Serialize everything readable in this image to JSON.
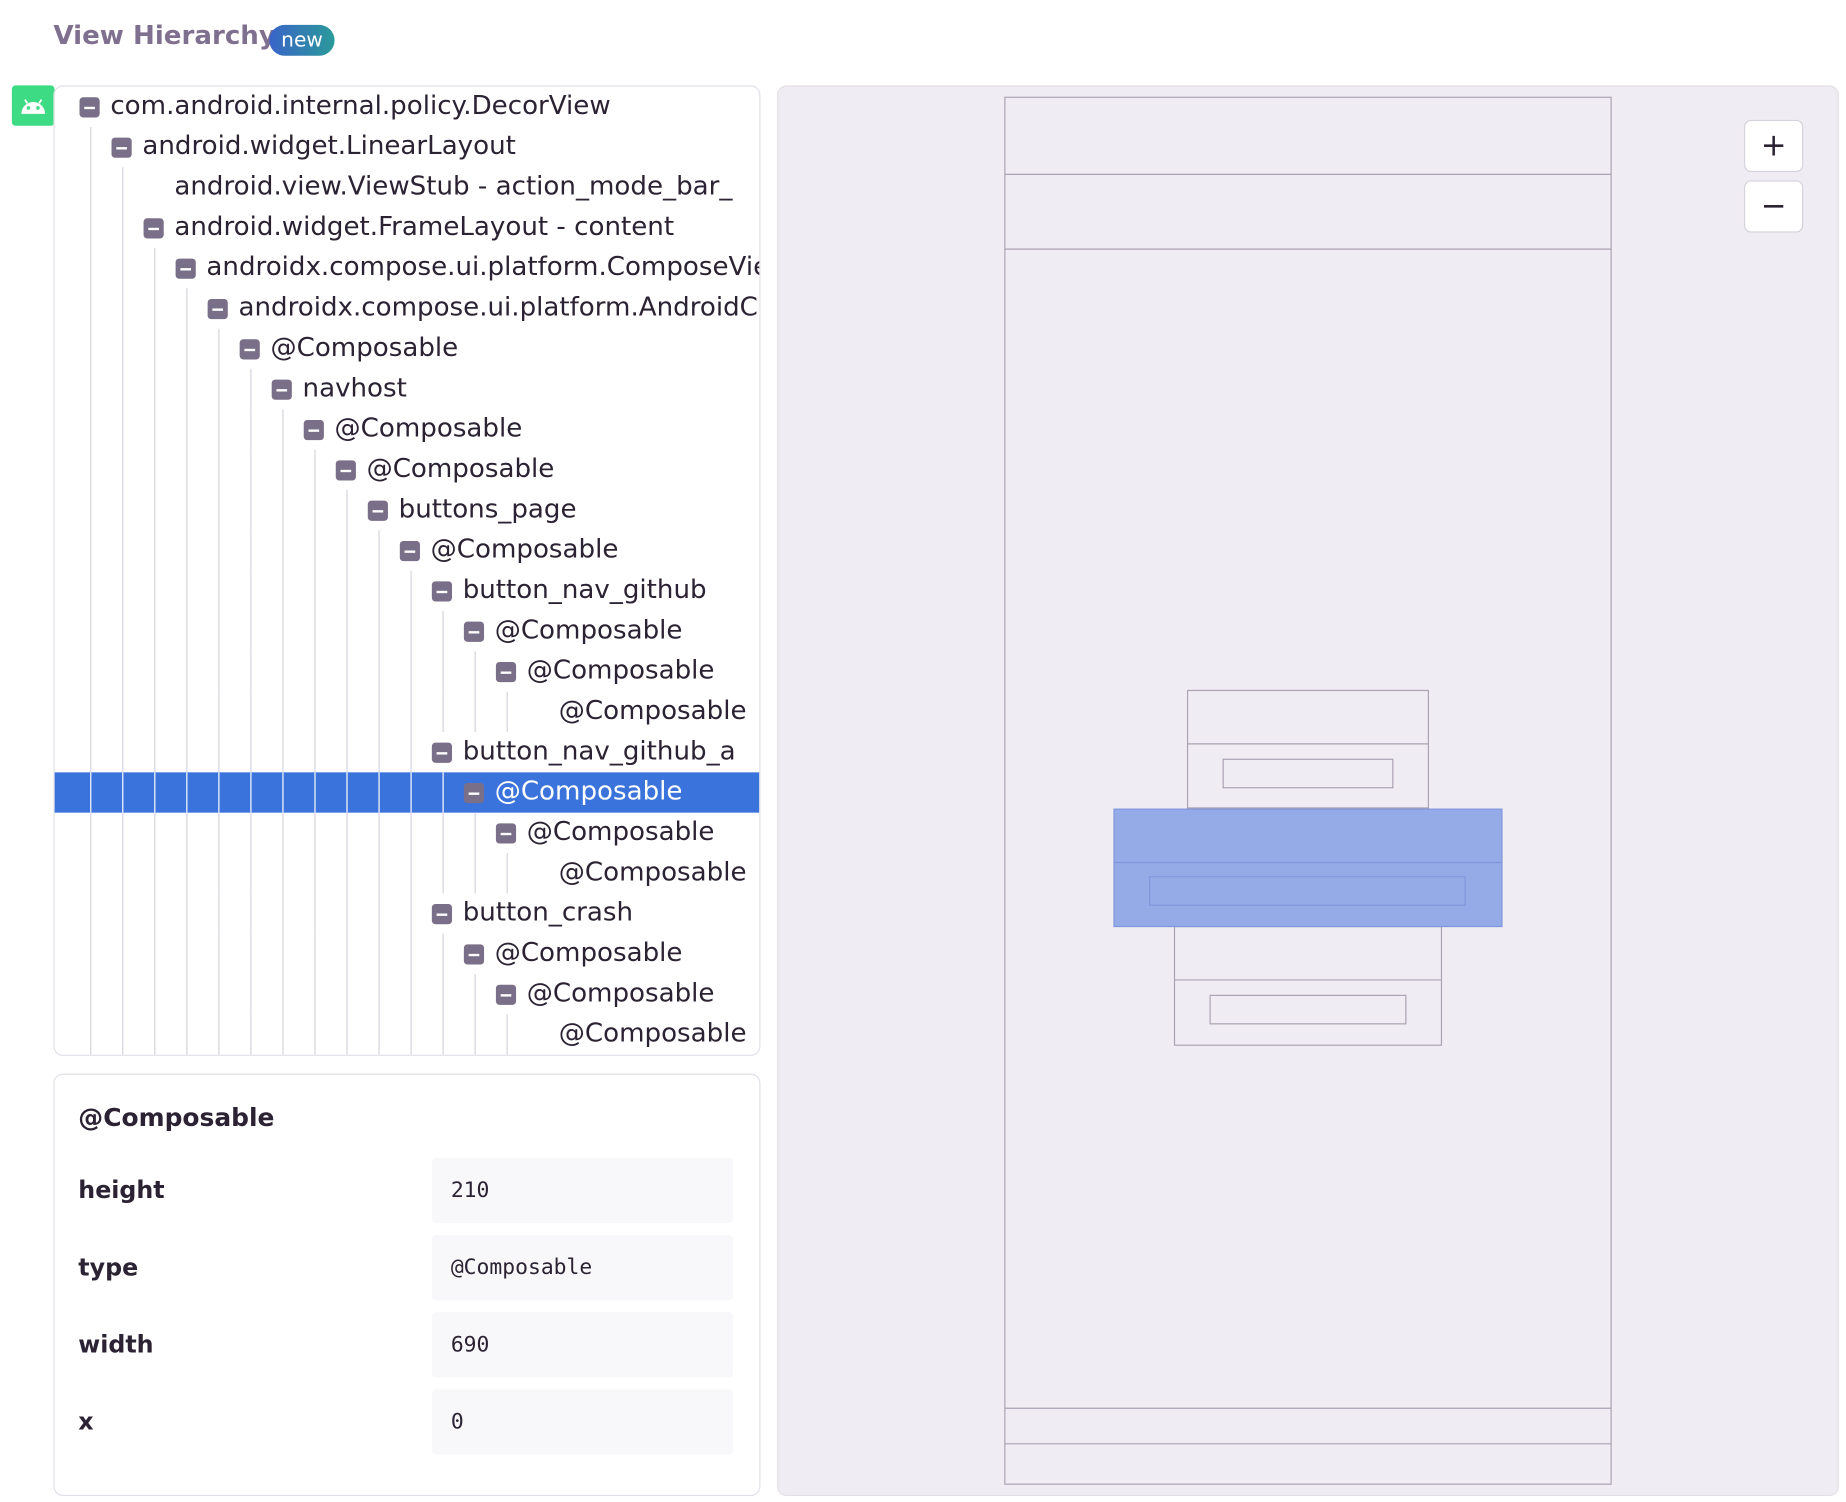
{
  "header": {
    "title": "View Hierarchy",
    "badge": "new"
  },
  "tree": {
    "nodes": [
      {
        "label": "com.android.internal.policy.DecorView",
        "depth": 0,
        "expanded": true
      },
      {
        "label": "android.widget.LinearLayout",
        "depth": 1,
        "expanded": true
      },
      {
        "label": "android.view.ViewStub - action_mode_bar_",
        "depth": 2,
        "expanded": false
      },
      {
        "label": "android.widget.FrameLayout - content",
        "depth": 2,
        "expanded": true
      },
      {
        "label": "androidx.compose.ui.platform.ComposeVie",
        "depth": 3,
        "expanded": true
      },
      {
        "label": "androidx.compose.ui.platform.AndroidC",
        "depth": 4,
        "expanded": true
      },
      {
        "label": "@Composable",
        "depth": 5,
        "expanded": true
      },
      {
        "label": "navhost",
        "depth": 6,
        "expanded": true
      },
      {
        "label": "@Composable",
        "depth": 7,
        "expanded": true
      },
      {
        "label": "@Composable",
        "depth": 8,
        "expanded": true
      },
      {
        "label": "buttons_page",
        "depth": 9,
        "expanded": true
      },
      {
        "label": "@Composable",
        "depth": 10,
        "expanded": true
      },
      {
        "label": "button_nav_github",
        "depth": 11,
        "expanded": true
      },
      {
        "label": "@Composable",
        "depth": 12,
        "expanded": true
      },
      {
        "label": "@Composable",
        "depth": 13,
        "expanded": true
      },
      {
        "label": "@Composable",
        "depth": 14,
        "expanded": false
      },
      {
        "label": "button_nav_github_a",
        "depth": 11,
        "expanded": true
      },
      {
        "label": "@Composable",
        "depth": 12,
        "expanded": true,
        "selected": true
      },
      {
        "label": "@Composable",
        "depth": 13,
        "expanded": true
      },
      {
        "label": "@Composable",
        "depth": 14,
        "expanded": false
      },
      {
        "label": "button_crash",
        "depth": 11,
        "expanded": true
      },
      {
        "label": "@Composable",
        "depth": 12,
        "expanded": true
      },
      {
        "label": "@Composable",
        "depth": 13,
        "expanded": true
      },
      {
        "label": "@Composable",
        "depth": 14,
        "expanded": false
      }
    ]
  },
  "details": {
    "title": "@Composable",
    "rows": [
      [
        "height",
        "210"
      ],
      [
        "type",
        "@Composable"
      ],
      [
        "width",
        "690"
      ],
      [
        "x",
        "0"
      ]
    ]
  },
  "zoom": {
    "in": "+",
    "out": "−"
  }
}
